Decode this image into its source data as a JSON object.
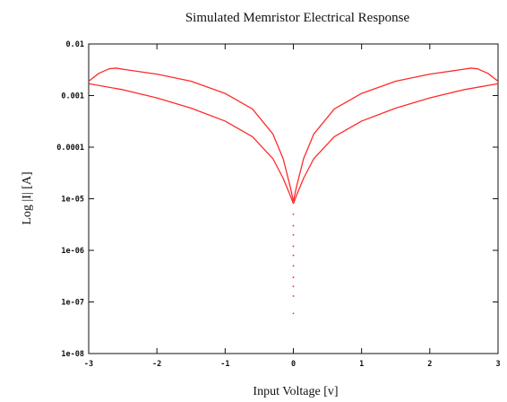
{
  "chart_data": {
    "type": "line",
    "title": "Simulated Memristor Electrical  Response",
    "xlabel": "Input Voltage [v]",
    "ylabel": "Log |I| [A]",
    "x_scale": "linear",
    "y_scale": "log",
    "xlim": [
      -3,
      3
    ],
    "ylim": [
      1e-08,
      0.01
    ],
    "x_ticks": [
      -3,
      -2,
      -1,
      0,
      1,
      2,
      3
    ],
    "x_tick_labels": [
      "-3",
      "-2",
      "-1",
      "0",
      "1",
      "2",
      "3"
    ],
    "y_ticks": [
      0.01,
      0.001,
      0.0001,
      1e-05,
      1e-06,
      1e-07,
      1e-08
    ],
    "y_tick_labels": [
      "0.01",
      "0.001",
      "0.0001",
      "1e-05",
      "1e-06",
      "1e-07",
      "1e-08"
    ],
    "grid": false,
    "legend": "none",
    "color": "#ff2a2a",
    "series": [
      {
        "x": [
          -3.0,
          -2.85,
          -2.7,
          -2.6,
          -2.4,
          -2.0,
          -1.5,
          -1.0,
          -0.6,
          -0.3,
          -0.15,
          -0.05,
          0.0
        ],
        "y": [
          0.0019,
          0.0027,
          0.0033,
          0.0034,
          0.0031,
          0.0026,
          0.0019,
          0.0011,
          0.00055,
          0.00018,
          6e-05,
          1.8e-05,
          9e-06
        ]
      },
      {
        "x": [
          -3.0,
          -2.5,
          -2.0,
          -1.5,
          -1.0,
          -0.6,
          -0.3,
          -0.15,
          -0.05,
          0.0
        ],
        "y": [
          0.0017,
          0.0013,
          0.0009,
          0.00057,
          0.00032,
          0.00016,
          6e-05,
          2.5e-05,
          1.2e-05,
          8e-06
        ]
      },
      {
        "x": [
          0.0,
          0.05,
          0.15,
          0.3,
          0.6,
          1.0,
          1.5,
          2.0,
          2.4,
          2.6,
          2.7,
          2.85,
          3.0
        ],
        "y": [
          9e-06,
          1.8e-05,
          6e-05,
          0.00018,
          0.00055,
          0.0011,
          0.0019,
          0.0026,
          0.0031,
          0.0034,
          0.0033,
          0.0027,
          0.0019
        ]
      },
      {
        "x": [
          0.0,
          0.05,
          0.15,
          0.3,
          0.6,
          1.0,
          1.5,
          2.0,
          2.5,
          3.0
        ],
        "y": [
          8e-06,
          1.2e-05,
          2.5e-05,
          6e-05,
          0.00016,
          0.00032,
          0.00057,
          0.0009,
          0.0013,
          0.0017
        ]
      }
    ],
    "scatter_points": {
      "x": [
        0.0,
        0.0,
        0.0,
        0.0,
        0.0,
        0.0,
        0.0,
        0.0,
        0.0,
        0.0
      ],
      "y": [
        5e-06,
        3e-06,
        2e-06,
        1.2e-06,
        8e-07,
        5e-07,
        3e-07,
        2e-07,
        1.3e-07,
        6e-08
      ]
    }
  }
}
